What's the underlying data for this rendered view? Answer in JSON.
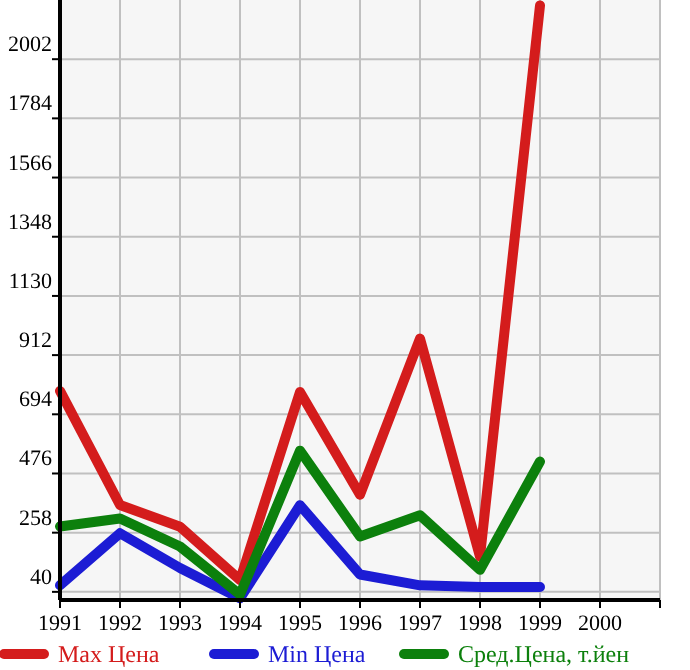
{
  "chart_data": {
    "type": "line",
    "x": [
      1991,
      1992,
      1993,
      1994,
      1995,
      1996,
      1997,
      1998,
      1999
    ],
    "series": [
      {
        "name": "Max Цена",
        "color": "#d41c1c",
        "values": [
          780,
          360,
          280,
          84,
          776,
          398,
          973,
          170,
          2200
        ]
      },
      {
        "name": "Min Цена",
        "color": "#1c1cd4",
        "values": [
          64,
          256,
          128,
          16,
          359,
          104,
          64,
          58,
          58
        ]
      },
      {
        "name": "Сред.Цена, т.йен",
        "color": "#0c800c",
        "values": [
          281,
          310,
          207,
          30,
          560,
          244,
          322,
          121,
          520
        ]
      }
    ],
    "xlim": [
      1991,
      2001
    ],
    "xticks": [
      1991,
      1992,
      1993,
      1994,
      1995,
      1996,
      1997,
      1998,
      1999,
      2000
    ],
    "ylim": [
      10,
      2220
    ],
    "yticks": [
      40,
      258,
      476,
      694,
      912,
      1130,
      1348,
      1566,
      1784,
      2002
    ],
    "grid": true,
    "legend": "bottom",
    "marker": "none",
    "line_style": "solid"
  }
}
